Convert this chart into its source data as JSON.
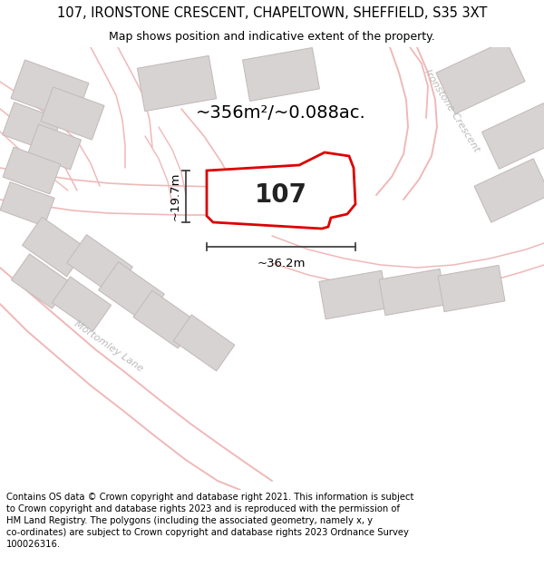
{
  "title_line1": "107, IRONSTONE CRESCENT, CHAPELTOWN, SHEFFIELD, S35 3XT",
  "title_line2": "Map shows position and indicative extent of the property.",
  "footer": "Contains OS data © Crown copyright and database right 2021. This information is subject to Crown copyright and database rights 2023 and is reproduced with the permission of HM Land Registry. The polygons (including the associated geometry, namely x, y co-ordinates) are subject to Crown copyright and database rights 2023 Ordnance Survey 100026316.",
  "area_label": "~356m²/~0.088ac.",
  "property_number": "107",
  "width_label": "~36.2m",
  "height_label": "~19.7m",
  "map_bg": "#f5f2f2",
  "property_outline_color": "#dd0000",
  "property_fill_color": "#ffffff",
  "road_line_color": "#f0b8b8",
  "building_fill": "#d8d3d3",
  "building_edge": "#c5bcbc",
  "title_fontsize": 10.5,
  "subtitle_fontsize": 9,
  "footer_fontsize": 7.2,
  "street_label_color": "#bbbbbb",
  "dim_line_color": "#444444",
  "number_fontsize": 20
}
